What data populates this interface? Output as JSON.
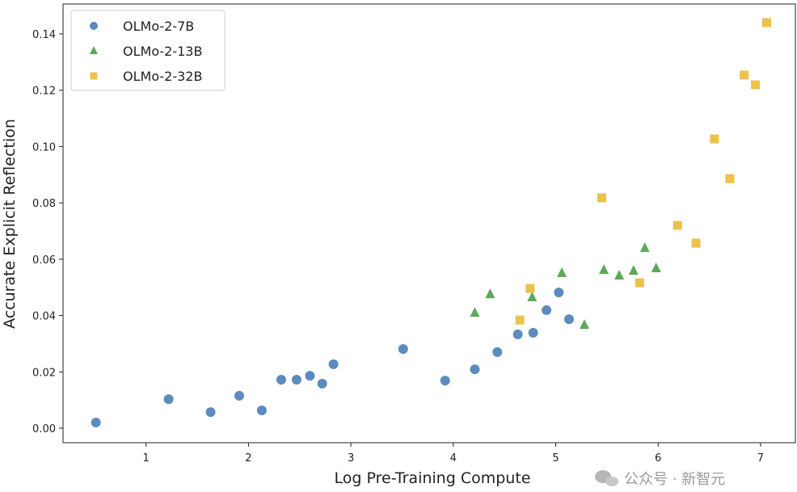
{
  "chart_data": {
    "type": "scatter",
    "title": "",
    "xlabel": "Log Pre-Training Compute",
    "ylabel": "Accurate Explicit Reflection",
    "xlim": [
      0.2,
      7.5
    ],
    "ylim": [
      -0.005,
      0.15
    ],
    "xticks": [
      1,
      2,
      3,
      4,
      5,
      6,
      7
    ],
    "xtick_labels": [
      "1",
      "2",
      "3",
      "4",
      "5",
      "6",
      "7"
    ],
    "yticks": [
      0.0,
      0.02,
      0.04,
      0.06,
      0.08,
      0.1,
      0.12,
      0.14
    ],
    "ytick_labels": [
      "0.00",
      "0.02",
      "0.04",
      "0.06",
      "0.08",
      "0.10",
      "0.12",
      "0.14"
    ],
    "grid": false,
    "legend_position": "top-left",
    "series": [
      {
        "name": "OLMo-2-7B",
        "marker": "circle",
        "color": "#5b8bbf",
        "x": [
          0.51,
          1.22,
          1.63,
          1.91,
          2.13,
          2.32,
          2.47,
          2.6,
          2.72,
          2.83,
          3.51,
          3.92,
          4.21,
          4.43,
          4.63,
          4.78,
          4.91,
          5.03,
          5.13
        ],
        "y": [
          0.002,
          0.0103,
          0.0057,
          0.0115,
          0.0063,
          0.0172,
          0.0172,
          0.0186,
          0.0158,
          0.0227,
          0.0281,
          0.0169,
          0.0209,
          0.027,
          0.0333,
          0.0339,
          0.0419,
          0.0482,
          0.0387
        ]
      },
      {
        "name": "OLMo-2-13B",
        "marker": "triangle",
        "color": "#5fa85a",
        "x": [
          4.21,
          4.36,
          4.77,
          5.06,
          5.28,
          5.47,
          5.62,
          5.76,
          5.87,
          5.98
        ],
        "y": [
          0.041,
          0.0476,
          0.0465,
          0.0551,
          0.0367,
          0.0562,
          0.0542,
          0.0559,
          0.064,
          0.0568
        ]
      },
      {
        "name": "OLMo-2-32B",
        "marker": "square",
        "color": "#ecc24a",
        "x": [
          4.65,
          4.75,
          5.45,
          5.82,
          6.19,
          6.37,
          6.55,
          6.7,
          6.84,
          6.95,
          7.06
        ],
        "y": [
          0.0384,
          0.0496,
          0.0818,
          0.0516,
          0.072,
          0.0657,
          0.1027,
          0.0886,
          0.1254,
          0.1219,
          0.144
        ]
      }
    ]
  },
  "watermark": "公众号 · 新智元"
}
